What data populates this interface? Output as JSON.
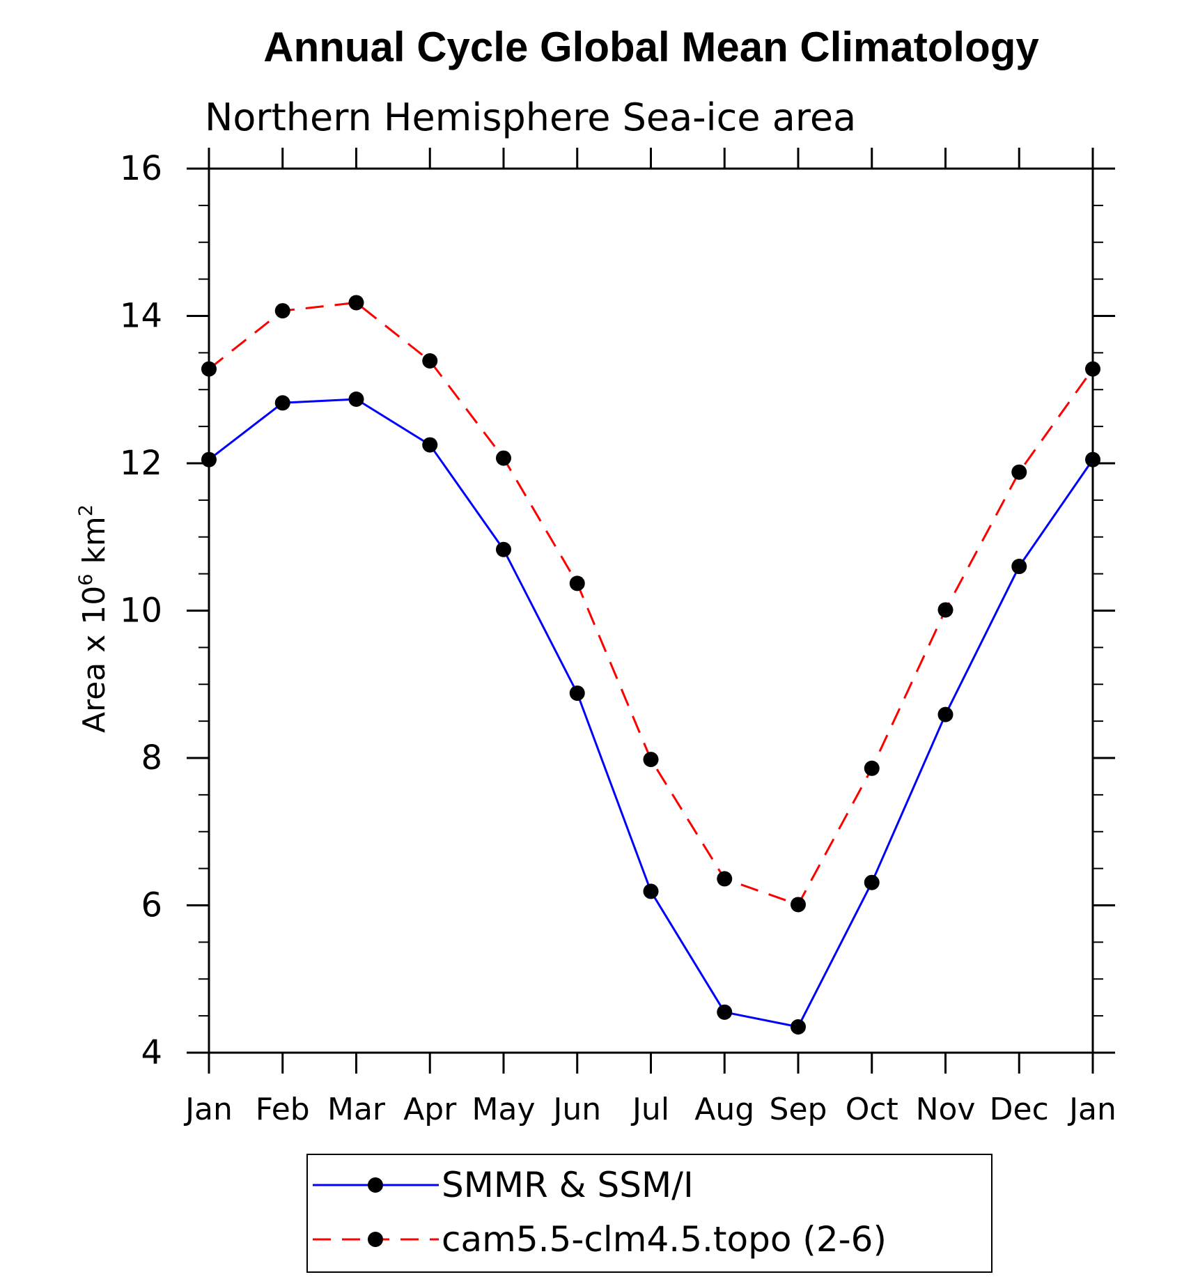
{
  "chart_data": {
    "type": "line",
    "title": "Annual Cycle Global Mean Climatology",
    "subtitle": "Northern Hemisphere Sea-ice area",
    "ylabel_text": "Area x 10",
    "ylabel_sup": "6",
    "ylabel_unit": " km",
    "ylabel_unit_sup": "2",
    "categories": [
      "Jan",
      "Feb",
      "Mar",
      "Apr",
      "May",
      "Jun",
      "Jul",
      "Aug",
      "Sep",
      "Oct",
      "Nov",
      "Dec",
      "Jan"
    ],
    "ylim": [
      4,
      16
    ],
    "yticks": [
      4,
      6,
      8,
      10,
      12,
      14,
      16
    ],
    "legend_position": "bottom",
    "series": [
      {
        "name": "SMMR & SSM/I",
        "color": "#0000ff",
        "style": "solid",
        "values": [
          12.05,
          12.82,
          12.87,
          12.25,
          10.83,
          8.88,
          6.19,
          4.55,
          4.35,
          6.31,
          8.59,
          10.6,
          12.05
        ]
      },
      {
        "name": "cam5.5-clm4.5.topo (2-6)",
        "color": "#ff0000",
        "style": "dashed",
        "values": [
          13.28,
          14.07,
          14.18,
          13.39,
          12.07,
          10.37,
          7.98,
          6.36,
          6.01,
          7.86,
          10.01,
          11.88,
          13.28
        ]
      }
    ]
  }
}
